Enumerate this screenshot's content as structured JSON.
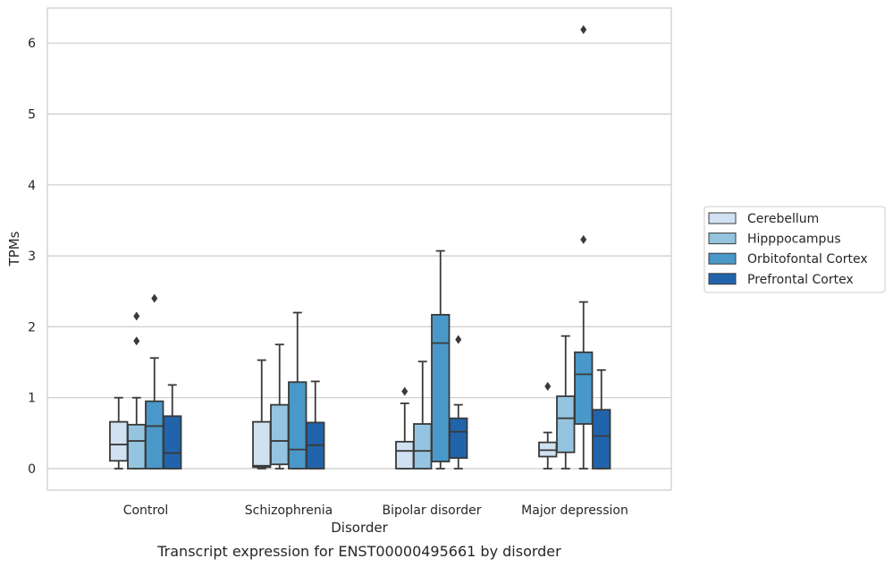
{
  "chart_data": {
    "type": "box",
    "caption": "Transcript expression for ENST00000495661 by disorder",
    "xlabel": "Disorder",
    "ylabel": "TPMs",
    "ylim": [
      -0.3,
      6.5
    ],
    "yticks": [
      0,
      1,
      2,
      3,
      4,
      5,
      6
    ],
    "grid": "horizontal",
    "legend_position": "right",
    "categories": [
      "Control",
      "Schizophrenia",
      "Bipolar disorder",
      "Major depression"
    ],
    "series": [
      {
        "name": "Cerebellum",
        "color": "#d0e1f2",
        "boxes": [
          {
            "whislo": 0.0,
            "q1": 0.11,
            "med": 0.34,
            "q3": 0.66,
            "whishi": 1.0,
            "fliers": []
          },
          {
            "whislo": 0.0,
            "q1": 0.02,
            "med": 0.04,
            "q3": 0.66,
            "whishi": 1.53,
            "fliers": []
          },
          {
            "whislo": 0.0,
            "q1": 0.0,
            "med": 0.25,
            "q3": 0.38,
            "whishi": 0.92,
            "fliers": [
              1.09
            ]
          },
          {
            "whislo": 0.0,
            "q1": 0.17,
            "med": 0.26,
            "q3": 0.37,
            "whishi": 0.51,
            "fliers": [
              1.16
            ]
          }
        ]
      },
      {
        "name": "Hipppocampus",
        "color": "#94c4df",
        "boxes": [
          {
            "whislo": 0.0,
            "q1": 0.0,
            "med": 0.39,
            "q3": 0.62,
            "whishi": 1.0,
            "fliers": [
              1.8,
              2.15
            ]
          },
          {
            "whislo": 0.0,
            "q1": 0.06,
            "med": 0.39,
            "q3": 0.9,
            "whishi": 1.75,
            "fliers": []
          },
          {
            "whislo": 0.0,
            "q1": 0.0,
            "med": 0.25,
            "q3": 0.63,
            "whishi": 1.51,
            "fliers": []
          },
          {
            "whislo": 0.0,
            "q1": 0.23,
            "med": 0.71,
            "q3": 1.02,
            "whishi": 1.87,
            "fliers": []
          }
        ]
      },
      {
        "name": "Orbitofontal Cortex",
        "color": "#4a98c9",
        "boxes": [
          {
            "whislo": 0.0,
            "q1": 0.0,
            "med": 0.6,
            "q3": 0.95,
            "whishi": 1.56,
            "fliers": [
              2.4
            ]
          },
          {
            "whislo": 0.0,
            "q1": 0.0,
            "med": 0.27,
            "q3": 1.22,
            "whishi": 2.2,
            "fliers": []
          },
          {
            "whislo": 0.0,
            "q1": 0.1,
            "med": 1.77,
            "q3": 2.17,
            "whishi": 3.07,
            "fliers": []
          },
          {
            "whislo": 0.0,
            "q1": 0.63,
            "med": 1.33,
            "q3": 1.64,
            "whishi": 2.35,
            "fliers": [
              3.23,
              6.19
            ]
          }
        ]
      },
      {
        "name": "Prefrontal Cortex",
        "color": "#2164ab",
        "boxes": [
          {
            "whislo": 0.0,
            "q1": 0.0,
            "med": 0.22,
            "q3": 0.74,
            "whishi": 1.18,
            "fliers": []
          },
          {
            "whislo": 0.0,
            "q1": 0.0,
            "med": 0.33,
            "q3": 0.65,
            "whishi": 1.23,
            "fliers": []
          },
          {
            "whislo": 0.0,
            "q1": 0.15,
            "med": 0.52,
            "q3": 0.71,
            "whishi": 0.9,
            "fliers": [
              1.82
            ]
          },
          {
            "whislo": 0.0,
            "q1": 0.0,
            "med": 0.46,
            "q3": 0.83,
            "whishi": 1.39,
            "fliers": []
          }
        ]
      }
    ]
  }
}
